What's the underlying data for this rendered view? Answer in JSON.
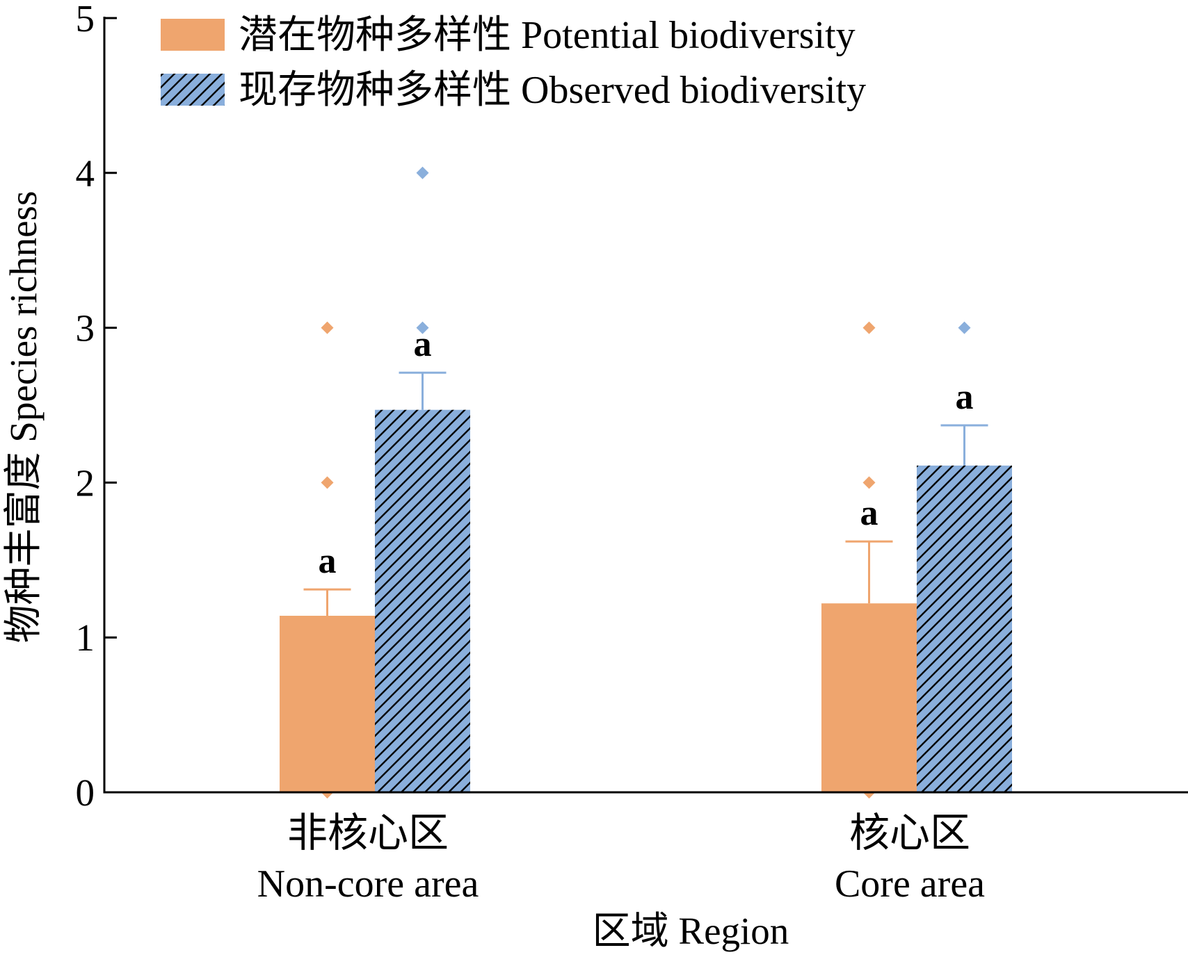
{
  "chart_data": {
    "type": "bar",
    "title": "",
    "xlabel": "区域 Region",
    "ylabel": "物种丰富度 Species richness",
    "ylim": [
      0,
      5
    ],
    "yticks": [
      "0",
      "1",
      "2",
      "3",
      "4",
      "5"
    ],
    "grid": false,
    "legend_position": "top-left",
    "categories": [
      {
        "zh": "非核心区",
        "en": "Non-core area"
      },
      {
        "zh": "核心区",
        "en": "Core area"
      }
    ],
    "series": [
      {
        "name": "潜在物种多样性 Potential biodiversity",
        "color": "#EFA56E",
        "pattern": "solid",
        "values": [
          1.14,
          1.22
        ],
        "error_upper": [
          1.31,
          1.62
        ],
        "significance": [
          "a",
          "a"
        ],
        "outliers": [
          [
            3,
            2,
            0
          ],
          [
            3,
            2,
            0
          ]
        ]
      },
      {
        "name": "现存物种多样性 Observed biodiversity",
        "color": "#8AAFDC",
        "pattern": "hatched",
        "values": [
          2.47,
          2.11
        ],
        "error_upper": [
          2.71,
          2.37
        ],
        "significance": [
          "a",
          "a"
        ],
        "outliers": [
          [
            4,
            3
          ],
          [
            3
          ]
        ]
      }
    ]
  }
}
